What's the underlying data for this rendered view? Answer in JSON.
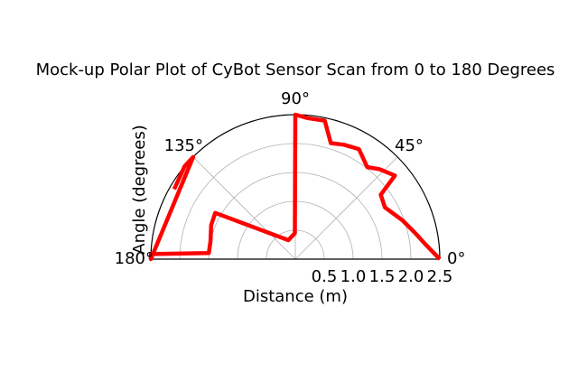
{
  "chart_data": {
    "type": "polar-line",
    "title": "Mock-up Polar Plot of CyBot Sensor Scan from 0 to 180 Degrees",
    "xlabel": "Distance (m)",
    "ylabel": "Angle (degrees)",
    "theta_range_deg": [
      0,
      180
    ],
    "r_range": [
      0,
      2.5
    ],
    "r_ticks": [
      "0.5",
      "1.0",
      "1.5",
      "2.0",
      "2.5"
    ],
    "theta_ticks": [
      "0°",
      "45°",
      "90°",
      "135°",
      "180°"
    ],
    "grid": true,
    "series": [
      {
        "color": "#ff0000",
        "points": [
          {
            "angle": 0,
            "distance": 2.5
          },
          {
            "angle": 6,
            "distance": 2.28
          },
          {
            "angle": 12,
            "distance": 2.13
          },
          {
            "angle": 20,
            "distance": 1.97
          },
          {
            "angle": 30,
            "distance": 1.79
          },
          {
            "angle": 37,
            "distance": 1.85
          },
          {
            "angle": 40,
            "distance": 2.25
          },
          {
            "angle": 47,
            "distance": 2.13
          },
          {
            "angle": 52,
            "distance": 2.02
          },
          {
            "angle": 60,
            "distance": 2.2
          },
          {
            "angle": 67,
            "distance": 2.15
          },
          {
            "angle": 73,
            "distance": 2.1
          },
          {
            "angle": 78,
            "distance": 2.45
          },
          {
            "angle": 85,
            "distance": 2.45
          },
          {
            "angle": 90,
            "distance": 2.5
          },
          {
            "angle": 91,
            "distance": 0.45
          },
          {
            "angle": 110,
            "distance": 0.35
          },
          {
            "angle": 150,
            "distance": 1.6
          },
          {
            "angle": 158,
            "distance": 1.57
          },
          {
            "angle": 168,
            "distance": 1.5
          },
          {
            "angle": 176,
            "distance": 1.5
          },
          {
            "angle": 178,
            "distance": 2.5
          },
          {
            "angle": 180,
            "distance": 2.5
          },
          {
            "angle": 135,
            "distance": 2.5
          },
          {
            "angle": 140,
            "distance": 2.5
          },
          {
            "angle": 150,
            "distance": 2.42
          }
        ]
      }
    ]
  }
}
